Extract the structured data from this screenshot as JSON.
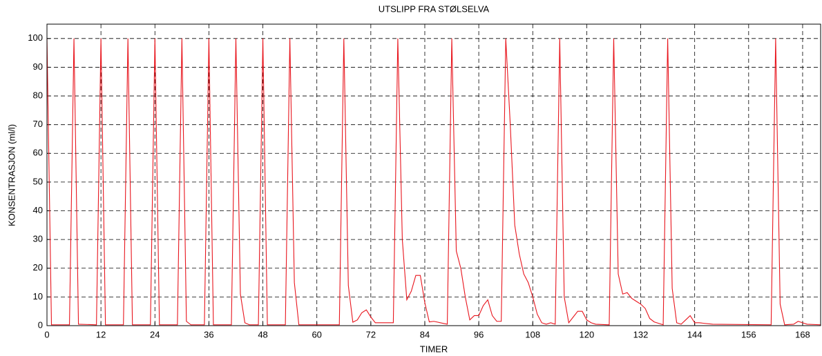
{
  "chart_data": {
    "type": "line",
    "title": "UTSLIPP FRA STØLSELVA",
    "x_label": "TIMER",
    "y_label": "KONSENTRASJON (ml/l)",
    "color": "#e8141c",
    "x": [
      0,
      1,
      5,
      6,
      7,
      11,
      12,
      13,
      17,
      18,
      19,
      23,
      24,
      25,
      29,
      30,
      31,
      32,
      35,
      36,
      37,
      41,
      42,
      43,
      44,
      45,
      47,
      48,
      49,
      53,
      54,
      55,
      56,
      65,
      66,
      67,
      68,
      69,
      70,
      71,
      72,
      73,
      77,
      78,
      79,
      80,
      81,
      82,
      83,
      84,
      85,
      86,
      89,
      90,
      91,
      92,
      93,
      94,
      95,
      96,
      97,
      98,
      99,
      100,
      101,
      102,
      103,
      104,
      105,
      106,
      107,
      108,
      109,
      110,
      111,
      112,
      113,
      114,
      115,
      116,
      117,
      118,
      119,
      120,
      121,
      122,
      125,
      126,
      127,
      128,
      129,
      130,
      131,
      132,
      133,
      134,
      135,
      137,
      138,
      139,
      140,
      141,
      142,
      143,
      144,
      145,
      148,
      161,
      162,
      163,
      164,
      166,
      167,
      168,
      169,
      172
    ],
    "values": [
      100,
      0.3,
      0.3,
      100,
      0.5,
      0.3,
      100,
      0.3,
      0.3,
      100,
      0.3,
      0.3,
      100,
      0.3,
      0.3,
      100,
      1.5,
      0.3,
      0.3,
      100,
      0.3,
      0.3,
      100,
      11,
      1,
      0.3,
      0.3,
      100,
      0.3,
      0.3,
      100,
      15,
      0.3,
      0.3,
      100,
      14,
      1.2,
      2,
      4.5,
      5.5,
      3,
      1,
      1,
      100,
      30,
      9,
      12,
      17.5,
      17.5,
      8,
      1.3,
      1.5,
      0.5,
      100,
      26,
      20,
      10,
      2,
      3.5,
      3.5,
      7,
      9,
      3.5,
      1.5,
      1.5,
      100,
      70,
      35,
      25,
      18,
      15,
      10,
      4,
      1,
      0.5,
      1,
      0.5,
      100,
      10,
      1,
      3,
      5,
      5,
      2,
      1,
      0.5,
      0.3,
      100,
      18,
      11,
      11.5,
      9.5,
      8.5,
      7.5,
      6,
      2.5,
      1.3,
      0.3,
      100,
      13,
      1,
      0.5,
      2,
      3.5,
      1,
      1,
      0.5,
      0.3,
      100,
      7.5,
      0.3,
      0.5,
      1.5,
      1,
      0.5,
      0.3
    ],
    "xlim": [
      0,
      172
    ],
    "ylim": [
      0,
      105
    ],
    "xticks": [
      0,
      12,
      24,
      36,
      48,
      60,
      72,
      84,
      96,
      108,
      120,
      132,
      144,
      156,
      168
    ],
    "yticks": [
      0,
      10,
      20,
      30,
      40,
      50,
      60,
      70,
      80,
      90,
      100
    ],
    "grid": true
  }
}
